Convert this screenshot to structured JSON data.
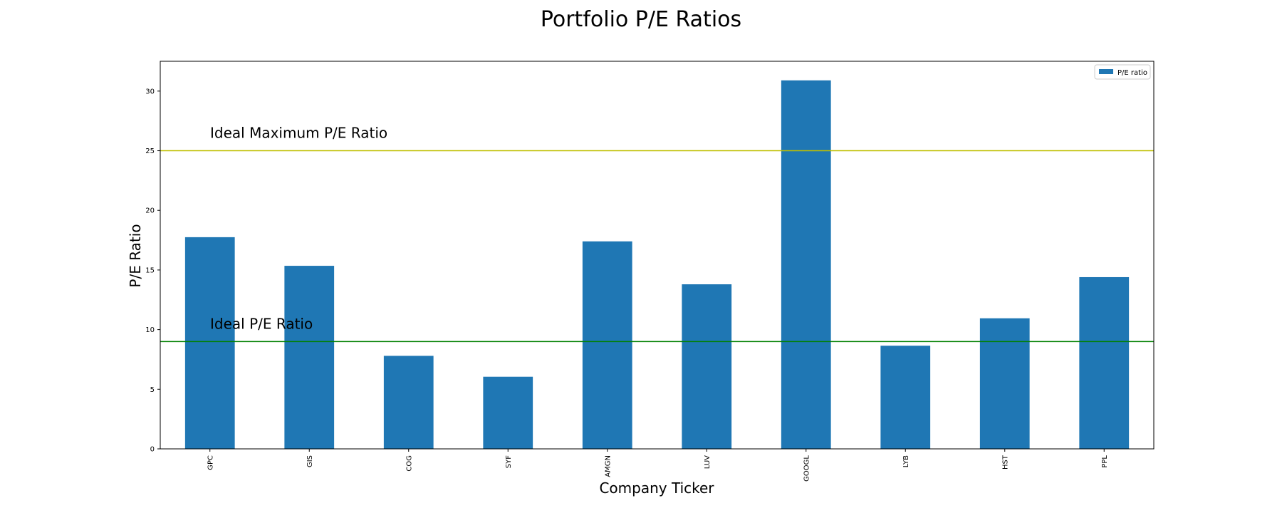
{
  "chart_data": {
    "type": "bar",
    "title": "Portfolio P/E Ratios",
    "xlabel": "Company Ticker",
    "ylabel": "P/E Ratio",
    "categories": [
      "GPC",
      "GIS",
      "COG",
      "SYF",
      "AMGN",
      "LUV",
      "GOOGL",
      "LYB",
      "HST",
      "PPL"
    ],
    "series": [
      {
        "name": "P/E ratio",
        "color": "#1f77b4",
        "values": [
          17.75,
          15.35,
          7.8,
          6.05,
          17.4,
          13.8,
          30.9,
          8.65,
          10.95,
          14.4
        ]
      }
    ],
    "ylim": [
      0,
      32.5
    ],
    "yticks": [
      0,
      5,
      10,
      15,
      20,
      25,
      30
    ],
    "grid": false,
    "legend": "top-right",
    "reference_lines": [
      {
        "label": "Ideal Maximum P/E Ratio",
        "value": 25,
        "color": "#bfbf00"
      },
      {
        "label": "Ideal P/E Ratio",
        "value": 9,
        "color": "#008000"
      }
    ]
  }
}
